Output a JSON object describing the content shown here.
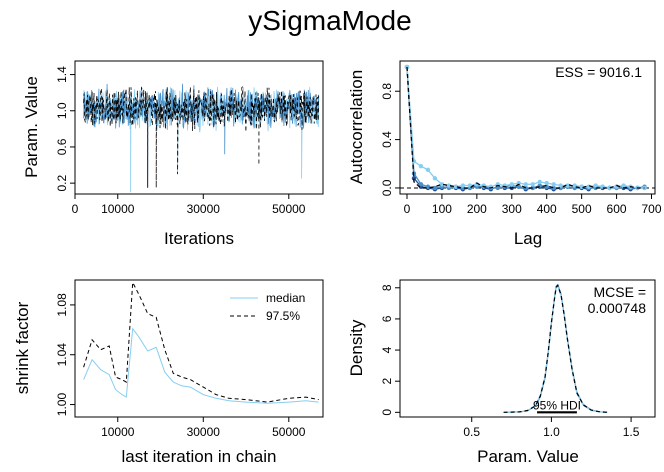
{
  "title": "ySigmaMode",
  "colors": {
    "chain_light": "#87cef0",
    "chain_mid": "#4a90c8",
    "chain_dark": "#1f4e9a",
    "black": "#000000"
  },
  "chart_data": [
    {
      "type": "line",
      "panel": "trace",
      "xlabel": "Iterations",
      "ylabel": "Param. Value",
      "xlim": [
        0,
        58000
      ],
      "ylim": [
        0.08,
        1.55
      ],
      "x_ticks": [
        0,
        10000,
        30000,
        50000
      ],
      "x_tick_labels": [
        "0",
        "10000",
        "30000",
        "50000"
      ],
      "y_ticks": [
        0.2,
        0.6,
        1.0,
        1.4
      ],
      "y_tick_labels": [
        "0.2",
        "0.6",
        "1.0",
        "1.4"
      ],
      "iteration_range": [
        2000,
        57000
      ],
      "central_value": 1.03,
      "series": [
        {
          "color": "#87cef0",
          "style": "solid"
        },
        {
          "color": "#4a90c8",
          "style": "solid"
        },
        {
          "color": "#000000",
          "style": "dashed"
        }
      ],
      "notable_dips": [
        {
          "x": 13000,
          "y": 0.1
        },
        {
          "x": 17000,
          "y": 0.15
        },
        {
          "x": 19000,
          "y": 0.15
        },
        {
          "x": 24000,
          "y": 0.3
        },
        {
          "x": 35000,
          "y": 0.52
        },
        {
          "x": 43000,
          "y": 0.4
        },
        {
          "x": 53000,
          "y": 0.25
        }
      ]
    },
    {
      "type": "line",
      "panel": "autocorrelation",
      "xlabel": "Lag",
      "ylabel": "Autocorrelation",
      "annotation": "ESS = 9016.1",
      "xlim": [
        -20,
        710
      ],
      "ylim": [
        -0.05,
        1.05
      ],
      "x_ticks": [
        0,
        100,
        200,
        300,
        400,
        500,
        600,
        700
      ],
      "x_tick_labels": [
        "0",
        "100",
        "200",
        "300",
        "400",
        "500",
        "600",
        "700"
      ],
      "y_ticks": [
        0.0,
        0.4,
        0.8
      ],
      "y_tick_labels": [
        "0.0",
        "0.4",
        "0.8"
      ],
      "x": [
        0,
        20,
        40,
        60,
        80,
        100,
        120,
        140,
        160,
        180,
        200,
        220,
        240,
        260,
        280,
        300,
        320,
        340,
        360,
        380,
        400,
        420,
        440,
        460,
        480,
        500,
        520,
        540,
        560,
        580,
        600,
        620,
        640,
        660,
        680
      ],
      "series": [
        {
          "color": "#1f4e9a",
          "values": [
            1.0,
            0.08,
            0.01,
            0.0,
            -0.01,
            0.0,
            0.01,
            0.0,
            -0.01,
            0.0,
            0.02,
            0.0,
            -0.01,
            0.01,
            0.0,
            0.0,
            0.01,
            -0.01,
            0.0,
            0.01,
            0.0,
            -0.01,
            0.0,
            0.01,
            0.0,
            0.0,
            -0.01,
            0.01,
            0.0,
            0.0,
            0.01,
            0.0,
            -0.01,
            0.0,
            0.0
          ]
        },
        {
          "color": "#4a90c8",
          "values": [
            1.0,
            0.12,
            0.03,
            0.01,
            0.0,
            0.01,
            0.0,
            0.01,
            0.0,
            0.0,
            0.01,
            0.01,
            0.0,
            0.0,
            0.01,
            0.02,
            0.01,
            0.0,
            0.0,
            0.02,
            0.01,
            0.0,
            0.0,
            0.01,
            0.0,
            0.01,
            0.0,
            0.0,
            0.01,
            0.0,
            0.0,
            0.01,
            0.0,
            0.0,
            0.01
          ]
        },
        {
          "color": "#87cef0",
          "values": [
            1.0,
            0.22,
            0.18,
            0.15,
            0.08,
            0.03,
            0.02,
            0.01,
            0.02,
            0.02,
            0.03,
            0.02,
            0.01,
            0.03,
            0.02,
            0.03,
            0.04,
            0.03,
            0.03,
            0.05,
            0.04,
            0.03,
            0.02,
            0.02,
            0.02,
            0.01,
            0.01,
            0.02,
            0.01,
            0.0,
            0.01,
            0.02,
            0.01,
            0.0,
            0.0
          ]
        },
        {
          "color": "#000000",
          "style": "dashed",
          "values": [
            1.0,
            0.05,
            0.0,
            0.0,
            0.01,
            0.03,
            0.02,
            0.01,
            0.0,
            0.0,
            0.04,
            0.01,
            0.0,
            0.02,
            0.01,
            0.0,
            0.03,
            0.0,
            0.0,
            0.01,
            0.02,
            0.0,
            0.0,
            0.03,
            0.01,
            0.0,
            0.02,
            0.0,
            0.0,
            0.0,
            0.02,
            0.0,
            0.01,
            0.0,
            0.0
          ]
        }
      ]
    },
    {
      "type": "line",
      "panel": "shrink-factor",
      "xlabel": "last iteration in chain",
      "ylabel": "shrink factor",
      "legend_position": "top-right",
      "xlim": [
        0,
        58000
      ],
      "ylim": [
        0.99,
        1.1
      ],
      "x_ticks": [
        10000,
        30000,
        50000
      ],
      "x_tick_labels": [
        "10000",
        "30000",
        "50000"
      ],
      "y_ticks": [
        1.0,
        1.04,
        1.08
      ],
      "y_tick_labels": [
        "1.00",
        "1.04",
        "1.08"
      ],
      "x": [
        2000,
        4000,
        6000,
        8000,
        9500,
        11000,
        12000,
        13500,
        15000,
        17000,
        19000,
        21000,
        23000,
        25000,
        27000,
        30000,
        33000,
        36000,
        40000,
        45000,
        50000,
        54000,
        57000
      ],
      "series": [
        {
          "name": "median",
          "color": "#87cef0",
          "style": "solid",
          "values": [
            1.02,
            1.036,
            1.028,
            1.024,
            1.012,
            1.008,
            1.006,
            1.061,
            1.054,
            1.043,
            1.046,
            1.026,
            1.018,
            1.015,
            1.014,
            1.008,
            1.005,
            1.003,
            1.002,
            1.001,
            1.002,
            1.003,
            1.002
          ]
        },
        {
          "name": "97.5%",
          "color": "#000000",
          "style": "dashed",
          "values": [
            1.03,
            1.052,
            1.044,
            1.047,
            1.022,
            1.02,
            1.018,
            1.098,
            1.088,
            1.073,
            1.07,
            1.044,
            1.025,
            1.022,
            1.02,
            1.014,
            1.008,
            1.005,
            1.004,
            1.002,
            1.005,
            1.006,
            1.004
          ]
        }
      ]
    },
    {
      "type": "area",
      "panel": "density",
      "xlabel": "Param. Value",
      "ylabel": "Density",
      "annotation_label": "MCSE =",
      "annotation_value": "0.000748",
      "hdi_label": "95% HDI",
      "hdi": [
        0.91,
        1.16
      ],
      "xlim": [
        0.05,
        1.65
      ],
      "ylim": [
        -0.3,
        8.5
      ],
      "x_ticks": [
        0.5,
        1.0,
        1.5
      ],
      "x_tick_labels": [
        "0.5",
        "1.0",
        "1.5"
      ],
      "y_ticks": [
        0,
        2,
        4,
        6,
        8
      ],
      "y_tick_labels": [
        "0",
        "2",
        "4",
        "6",
        "8"
      ],
      "x": [
        0.7,
        0.8,
        0.85,
        0.9,
        0.93,
        0.96,
        0.98,
        1.0,
        1.02,
        1.03,
        1.04,
        1.06,
        1.08,
        1.1,
        1.13,
        1.16,
        1.2,
        1.25,
        1.3,
        1.35
      ],
      "series": [
        {
          "color": "#4a90c8",
          "values": [
            0.0,
            0.03,
            0.1,
            0.4,
            1.0,
            2.2,
            3.8,
            5.7,
            7.4,
            8.1,
            8.2,
            7.6,
            6.3,
            4.8,
            2.8,
            1.3,
            0.5,
            0.15,
            0.04,
            0.0
          ]
        },
        {
          "color": "#87cef0",
          "values": [
            0.0,
            0.03,
            0.1,
            0.45,
            1.1,
            2.3,
            3.9,
            5.8,
            7.3,
            8.0,
            8.1,
            7.5,
            6.2,
            4.7,
            2.7,
            1.2,
            0.45,
            0.12,
            0.03,
            0.0
          ]
        },
        {
          "color": "#000000",
          "style": "dashed",
          "values": [
            0.0,
            0.03,
            0.12,
            0.42,
            1.05,
            2.25,
            3.85,
            5.75,
            7.35,
            8.05,
            8.15,
            7.55,
            6.25,
            4.75,
            2.75,
            1.25,
            0.48,
            0.14,
            0.04,
            0.0
          ]
        }
      ]
    }
  ]
}
